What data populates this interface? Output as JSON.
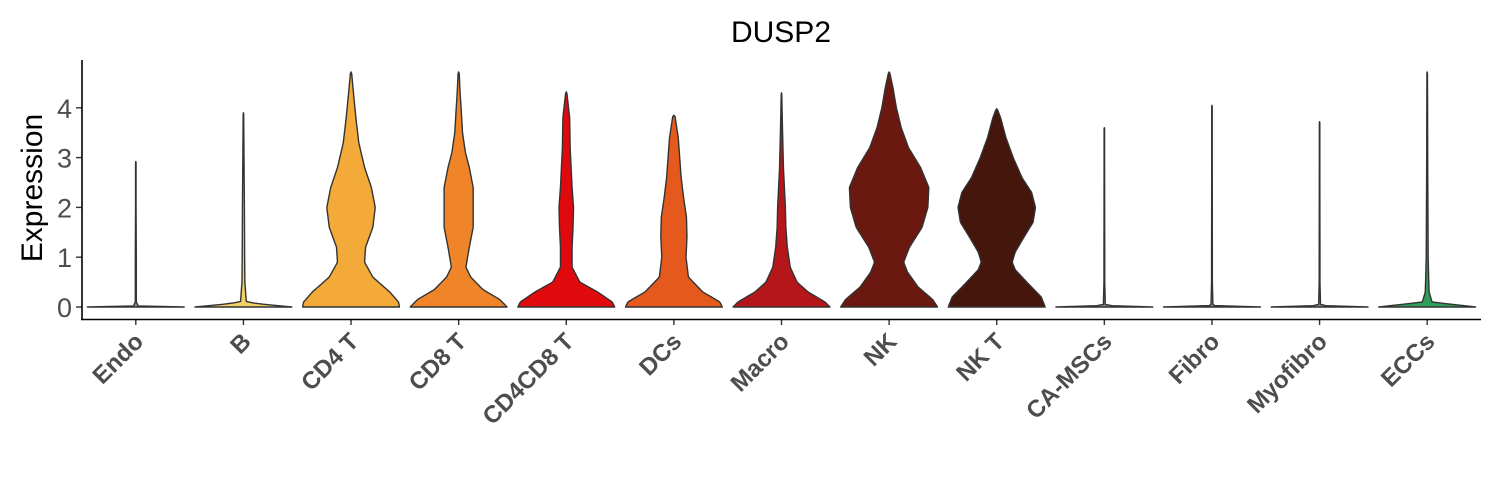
{
  "chart_data": {
    "type": "violin",
    "title": "DUSP2",
    "ylabel": "Expression",
    "xlabel": "",
    "ylim": [
      -0.2,
      4.95
    ],
    "yticks": [
      0,
      1,
      2,
      3,
      4
    ],
    "grid": false,
    "legend": "none",
    "categories": [
      "Endo",
      "B",
      "CD4 T",
      "CD8 T",
      "CD4CD8 T",
      "DCs",
      "Macro",
      "NK",
      "NK T",
      "CA-MSCs",
      "Fibro",
      "Myofibro",
      "ECCs"
    ],
    "colors": [
      "#8a8a8a",
      "#f0d264",
      "#f4aa38",
      "#f08428",
      "#e00a0e",
      "#e55a1c",
      "#b5161a",
      "#6b1910",
      "#44160c",
      "#8a8a8a",
      "#8a8a8a",
      "#8a8a8a",
      "#2e9e5a"
    ],
    "max_expression": [
      2.92,
      3.9,
      4.72,
      4.72,
      4.32,
      3.85,
      4.3,
      4.72,
      3.98,
      3.6,
      4.05,
      3.72,
      4.72
    ],
    "density_profiles": [
      [
        [
          0,
          1
        ],
        [
          0.02,
          0.05
        ],
        [
          0.1,
          0.01
        ],
        [
          0.3,
          0.01
        ],
        [
          1,
          0.01
        ],
        [
          2,
          0.005
        ],
        [
          2.92,
          0.005
        ]
      ],
      [
        [
          0,
          1
        ],
        [
          0.05,
          0.45
        ],
        [
          0.1,
          0.06
        ],
        [
          0.5,
          0.03
        ],
        [
          1,
          0.025
        ],
        [
          2,
          0.02
        ],
        [
          3,
          0.012
        ],
        [
          3.9,
          0.005
        ]
      ],
      [
        [
          0,
          1
        ],
        [
          0.1,
          0.98
        ],
        [
          0.3,
          0.8
        ],
        [
          0.6,
          0.45
        ],
        [
          0.9,
          0.28
        ],
        [
          1.2,
          0.3
        ],
        [
          1.6,
          0.45
        ],
        [
          2,
          0.5
        ],
        [
          2.4,
          0.42
        ],
        [
          2.8,
          0.28
        ],
        [
          3.3,
          0.16
        ],
        [
          3.8,
          0.1
        ],
        [
          4.3,
          0.05
        ],
        [
          4.72,
          0.01
        ]
      ],
      [
        [
          0,
          1
        ],
        [
          0.15,
          0.85
        ],
        [
          0.35,
          0.5
        ],
        [
          0.6,
          0.25
        ],
        [
          0.8,
          0.15
        ],
        [
          1.2,
          0.22
        ],
        [
          1.6,
          0.3
        ],
        [
          2,
          0.3
        ],
        [
          2.4,
          0.3
        ],
        [
          2.8,
          0.22
        ],
        [
          3.1,
          0.14
        ],
        [
          3.5,
          0.08
        ],
        [
          4,
          0.05
        ],
        [
          4.3,
          0.03
        ],
        [
          4.72,
          0.01
        ]
      ],
      [
        [
          0,
          1
        ],
        [
          0.1,
          0.95
        ],
        [
          0.3,
          0.65
        ],
        [
          0.5,
          0.28
        ],
        [
          0.8,
          0.12
        ],
        [
          1.2,
          0.12
        ],
        [
          1.6,
          0.14
        ],
        [
          2,
          0.15
        ],
        [
          2.4,
          0.12
        ],
        [
          2.8,
          0.1
        ],
        [
          3.2,
          0.08
        ],
        [
          3.8,
          0.07
        ],
        [
          4.32,
          0.01
        ]
      ],
      [
        [
          0,
          1
        ],
        [
          0.1,
          0.95
        ],
        [
          0.3,
          0.6
        ],
        [
          0.6,
          0.3
        ],
        [
          1,
          0.25
        ],
        [
          1.4,
          0.27
        ],
        [
          1.8,
          0.26
        ],
        [
          2.2,
          0.2
        ],
        [
          2.6,
          0.15
        ],
        [
          3,
          0.12
        ],
        [
          3.4,
          0.09
        ],
        [
          3.85,
          0.02
        ]
      ],
      [
        [
          0,
          1
        ],
        [
          0.1,
          0.9
        ],
        [
          0.3,
          0.55
        ],
        [
          0.5,
          0.32
        ],
        [
          0.8,
          0.18
        ],
        [
          1.2,
          0.12
        ],
        [
          1.6,
          0.09
        ],
        [
          2,
          0.08
        ],
        [
          2.4,
          0.06
        ],
        [
          2.8,
          0.04
        ],
        [
          3.2,
          0.03
        ],
        [
          3.6,
          0.02
        ],
        [
          4.3,
          0.005
        ]
      ],
      [
        [
          0,
          1
        ],
        [
          0.15,
          0.9
        ],
        [
          0.4,
          0.6
        ],
        [
          0.7,
          0.38
        ],
        [
          0.9,
          0.3
        ],
        [
          1.2,
          0.42
        ],
        [
          1.6,
          0.68
        ],
        [
          2,
          0.8
        ],
        [
          2.4,
          0.82
        ],
        [
          2.8,
          0.65
        ],
        [
          3.2,
          0.4
        ],
        [
          3.6,
          0.25
        ],
        [
          4,
          0.15
        ],
        [
          4.4,
          0.08
        ],
        [
          4.72,
          0.01
        ]
      ],
      [
        [
          0,
          1
        ],
        [
          0.2,
          0.92
        ],
        [
          0.5,
          0.62
        ],
        [
          0.75,
          0.38
        ],
        [
          0.9,
          0.32
        ],
        [
          1.1,
          0.38
        ],
        [
          1.4,
          0.56
        ],
        [
          1.7,
          0.75
        ],
        [
          2,
          0.8
        ],
        [
          2.3,
          0.72
        ],
        [
          2.6,
          0.52
        ],
        [
          3,
          0.34
        ],
        [
          3.4,
          0.19
        ],
        [
          3.8,
          0.08
        ],
        [
          3.98,
          0.01
        ]
      ],
      [
        [
          0,
          1
        ],
        [
          0.03,
          0.02
        ],
        [
          0.5,
          0.008
        ],
        [
          1,
          0.008
        ],
        [
          2,
          0.006
        ],
        [
          3,
          0.005
        ],
        [
          3.6,
          0.005
        ]
      ],
      [
        [
          0,
          1
        ],
        [
          0.03,
          0.02
        ],
        [
          0.5,
          0.008
        ],
        [
          1,
          0.008
        ],
        [
          2,
          0.006
        ],
        [
          3,
          0.005
        ],
        [
          4.05,
          0.005
        ]
      ],
      [
        [
          0,
          1
        ],
        [
          0.03,
          0.02
        ],
        [
          0.5,
          0.008
        ],
        [
          1,
          0.008
        ],
        [
          2,
          0.006
        ],
        [
          3,
          0.005
        ],
        [
          3.72,
          0.005
        ]
      ],
      [
        [
          0,
          1
        ],
        [
          0.05,
          0.55
        ],
        [
          0.1,
          0.1
        ],
        [
          0.3,
          0.04
        ],
        [
          0.6,
          0.03
        ],
        [
          1,
          0.02
        ],
        [
          2,
          0.015
        ],
        [
          3,
          0.01
        ],
        [
          4,
          0.008
        ],
        [
          4.72,
          0.005
        ]
      ]
    ]
  }
}
